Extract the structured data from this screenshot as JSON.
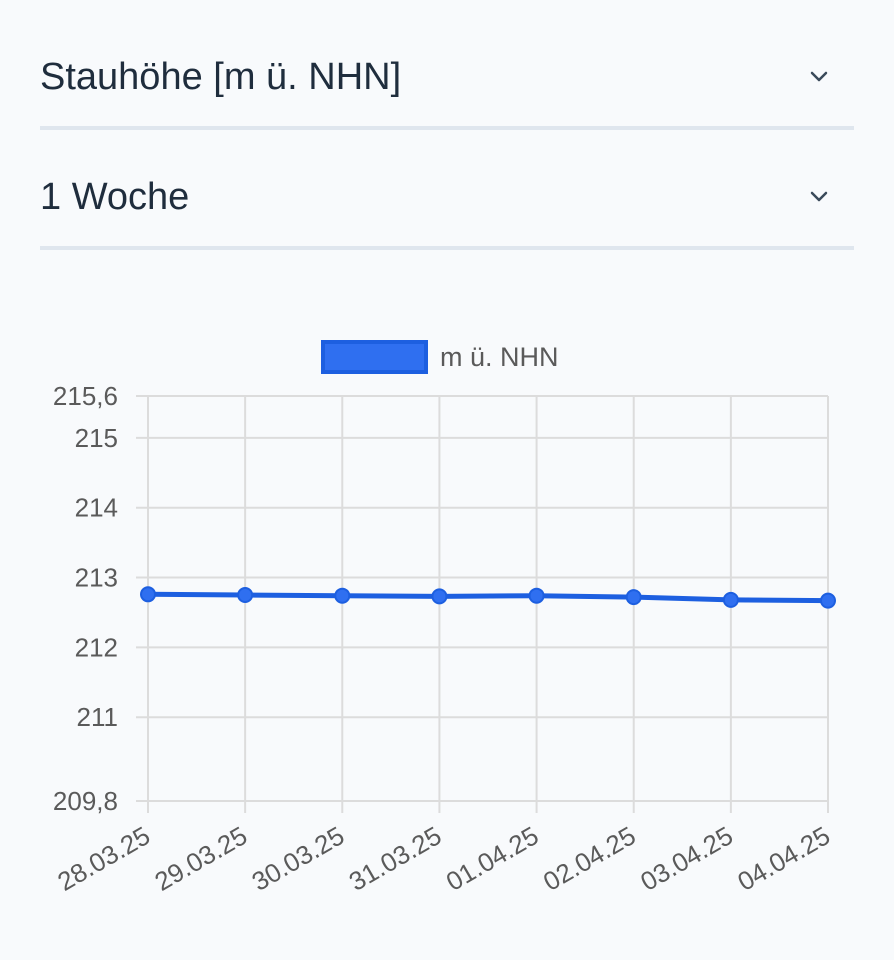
{
  "filters": {
    "metric": {
      "value": "Stauhöhe [m ü. NHN]",
      "icon": "chevron-down-icon"
    },
    "range": {
      "value": "1 Woche",
      "icon": "chevron-down-icon"
    }
  },
  "chart_data": {
    "type": "line",
    "categories": [
      "28.03.25",
      "29.03.25",
      "30.03.25",
      "31.03.25",
      "01.04.25",
      "02.04.25",
      "03.04.25",
      "04.04.25"
    ],
    "series": [
      {
        "name": "m ü. NHN",
        "values": [
          212.76,
          212.75,
          212.74,
          212.73,
          212.74,
          212.72,
          212.68,
          212.67
        ]
      }
    ],
    "ylim": [
      209.8,
      215.6
    ],
    "yticks": [
      "209,8",
      "211",
      "212",
      "213",
      "214",
      "215",
      "215,6"
    ],
    "grid": true,
    "legend": "top-center",
    "colors": {
      "line": "#1d5fe0",
      "point": "#2f6ff0",
      "grid": "#dcdcdc",
      "text": "#5a5a5a"
    }
  }
}
